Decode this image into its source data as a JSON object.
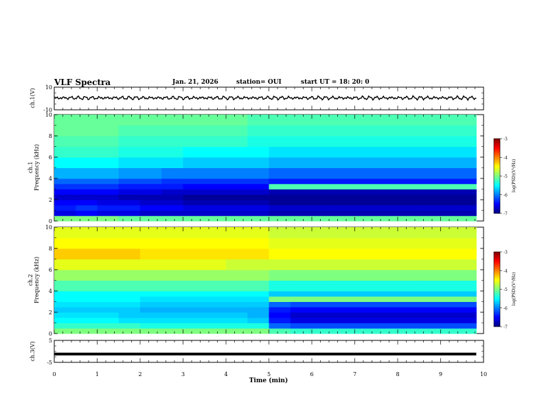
{
  "header": {
    "title": "VLF Spectra",
    "date": "Jan. 21, 2026",
    "station": "station= OUI",
    "start": "start  UT =   18: 20: 0"
  },
  "colors": {
    "colormap": [
      "#00007f",
      "#0000ff",
      "#007fff",
      "#00ffff",
      "#7fff7f",
      "#ffff00",
      "#ff7f00",
      "#ff0000",
      "#7f0000"
    ],
    "waveform": "#000000"
  },
  "chart_data": [
    {
      "id": "ch1-waveform",
      "type": "line",
      "ylabel": "ch.1(V)",
      "ylim": [
        -10,
        10
      ],
      "ytick_labels": [
        "10",
        "-10"
      ],
      "xlim": [
        0,
        10
      ],
      "data_extent_min": 9.83,
      "description_values": {
        "mean_v": 0.5,
        "amplitude_v": 2
      }
    },
    {
      "id": "ch1-spectrogram",
      "type": "heatmap",
      "ylabel": "ch.1\nFrequency (kHz)",
      "ylim": [
        0,
        10
      ],
      "ytick_labels": [
        "0",
        "2",
        "4",
        "6",
        "8",
        "10"
      ],
      "xlim": [
        0,
        10
      ],
      "x": [
        0.0,
        0.5,
        1.0,
        1.5,
        2.0,
        2.5,
        3.0,
        3.5,
        4.0,
        4.5,
        5.0,
        5.5,
        6.0,
        6.5,
        7.0,
        7.5,
        8.0,
        8.5,
        9.0,
        9.5,
        9.83
      ],
      "y": [
        0.5,
        1.0,
        1.5,
        2.0,
        2.5,
        3.0,
        3.5,
        4.0,
        5.0,
        6.0,
        7.0,
        8.0,
        9.0,
        10.0
      ],
      "z_log_psd": [
        [
          -5.0,
          -5.0,
          -5.0,
          -5.1,
          -5.1,
          -5.1,
          -5.1,
          -5.1,
          -5.1,
          -5.1,
          -5.1,
          -5.1,
          -5.1,
          -5.1,
          -5.1,
          -5.1,
          -5.1,
          -5.1,
          -5.1,
          -5.1,
          -5.1
        ],
        [
          -6.6,
          -6.5,
          -6.6,
          -6.6,
          -6.7,
          -6.7,
          -6.7,
          -6.7,
          -6.7,
          -6.7,
          -6.8,
          -6.8,
          -6.8,
          -6.8,
          -6.8,
          -6.8,
          -6.8,
          -6.8,
          -6.8,
          -6.8,
          -6.8
        ],
        [
          -6.4,
          -6.3,
          -6.4,
          -6.4,
          -6.5,
          -6.5,
          -6.6,
          -6.6,
          -6.6,
          -6.6,
          -6.7,
          -6.7,
          -6.7,
          -6.7,
          -6.7,
          -6.7,
          -6.7,
          -6.7,
          -6.7,
          -6.7,
          -6.7
        ],
        [
          -6.5,
          -6.5,
          -6.6,
          -6.6,
          -6.7,
          -6.7,
          -6.8,
          -6.8,
          -6.8,
          -6.8,
          -6.9,
          -6.9,
          -6.9,
          -6.9,
          -6.9,
          -6.9,
          -6.9,
          -6.9,
          -6.9,
          -6.9,
          -6.9
        ],
        [
          -6.7,
          -6.7,
          -6.7,
          -6.8,
          -6.8,
          -6.8,
          -6.9,
          -6.9,
          -6.9,
          -6.9,
          -6.9,
          -6.9,
          -6.9,
          -6.9,
          -6.9,
          -6.9,
          -6.9,
          -6.9,
          -6.9,
          -6.9,
          -6.9
        ],
        [
          -6.5,
          -6.5,
          -6.5,
          -6.6,
          -6.6,
          -6.7,
          -6.7,
          -6.7,
          -6.7,
          -6.7,
          -6.8,
          -6.8,
          -6.8,
          -6.8,
          -6.8,
          -6.8,
          -6.8,
          -6.8,
          -6.8,
          -6.8,
          -6.8
        ],
        [
          -6.3,
          -6.3,
          -6.3,
          -6.4,
          -6.4,
          -6.4,
          -6.5,
          -6.5,
          -6.5,
          -6.5,
          -5.2,
          -5.2,
          -5.2,
          -5.2,
          -5.2,
          -5.2,
          -5.2,
          -5.2,
          -5.2,
          -5.2,
          -5.2
        ],
        [
          -6.1,
          -6.1,
          -6.1,
          -6.2,
          -6.2,
          -6.3,
          -6.3,
          -6.3,
          -6.3,
          -6.3,
          -6.4,
          -6.4,
          -6.4,
          -6.4,
          -6.4,
          -6.4,
          -6.4,
          -6.4,
          -6.4,
          -6.4,
          -6.4
        ],
        [
          -5.8,
          -5.8,
          -5.8,
          -5.9,
          -5.9,
          -6.0,
          -6.0,
          -6.0,
          -6.0,
          -6.0,
          -6.1,
          -6.1,
          -6.1,
          -6.1,
          -6.1,
          -6.1,
          -6.1,
          -6.1,
          -6.1,
          -6.1,
          -6.1
        ],
        [
          -5.5,
          -5.5,
          -5.5,
          -5.6,
          -5.6,
          -5.6,
          -5.7,
          -5.7,
          -5.7,
          -5.7,
          -5.8,
          -5.8,
          -5.8,
          -5.8,
          -5.8,
          -5.8,
          -5.8,
          -5.8,
          -5.8,
          -5.8,
          -5.8
        ],
        [
          -5.3,
          -5.3,
          -5.3,
          -5.4,
          -5.4,
          -5.4,
          -5.5,
          -5.5,
          -5.5,
          -5.5,
          -5.6,
          -5.6,
          -5.6,
          -5.6,
          -5.6,
          -5.6,
          -5.6,
          -5.6,
          -5.6,
          -5.6,
          -5.6
        ],
        [
          -5.2,
          -5.2,
          -5.2,
          -5.3,
          -5.3,
          -5.3,
          -5.3,
          -5.3,
          -5.3,
          -5.4,
          -5.4,
          -5.4,
          -5.4,
          -5.4,
          -5.4,
          -5.4,
          -5.4,
          -5.4,
          -5.4,
          -5.4,
          -5.4
        ],
        [
          -5.1,
          -5.1,
          -5.1,
          -5.2,
          -5.2,
          -5.2,
          -5.2,
          -5.2,
          -5.2,
          -5.3,
          -5.3,
          -5.3,
          -5.3,
          -5.3,
          -5.3,
          -5.3,
          -5.3,
          -5.3,
          -5.3,
          -5.3,
          -5.3
        ],
        [
          -5.1,
          -5.1,
          -5.1,
          -5.1,
          -5.1,
          -5.1,
          -5.1,
          -5.1,
          -5.1,
          -5.2,
          -5.2,
          -5.2,
          -5.2,
          -5.2,
          -5.2,
          -5.2,
          -5.2,
          -5.2,
          -5.2,
          -5.2,
          -5.2
        ]
      ],
      "colorbar": {
        "label": "log(PSD)(V²/Hz)",
        "range": [
          -7,
          -3
        ],
        "tick_labels": [
          "-3",
          "-4",
          "-5",
          "-6",
          "-7"
        ]
      }
    },
    {
      "id": "ch2-spectrogram",
      "type": "heatmap",
      "ylabel": "ch.2\nFrequency (kHz)",
      "ylim": [
        0,
        10
      ],
      "ytick_labels": [
        "0",
        "2",
        "4",
        "6",
        "8",
        "10"
      ],
      "xlim": [
        0,
        10
      ],
      "x": [
        0.0,
        0.5,
        1.0,
        1.5,
        2.0,
        2.5,
        3.0,
        3.5,
        4.0,
        4.5,
        5.0,
        5.5,
        6.0,
        6.5,
        7.0,
        7.5,
        8.0,
        8.5,
        9.0,
        9.5,
        9.83
      ],
      "y": [
        0.5,
        1.0,
        1.5,
        2.0,
        2.5,
        3.0,
        3.5,
        4.0,
        5.0,
        6.0,
        7.0,
        8.0,
        9.0,
        10.0
      ],
      "z_log_psd": [
        [
          -5.0,
          -5.0,
          -5.0,
          -5.0,
          -5.0,
          -5.0,
          -5.0,
          -5.0,
          -5.0,
          -5.0,
          -5.2,
          -5.3,
          -5.3,
          -5.3,
          -5.3,
          -5.3,
          -5.3,
          -5.3,
          -5.3,
          -5.3,
          -5.3
        ],
        [
          -5.3,
          -5.3,
          -5.3,
          -5.3,
          -5.4,
          -5.4,
          -5.4,
          -5.4,
          -5.4,
          -5.4,
          -6.1,
          -6.2,
          -6.2,
          -6.2,
          -6.2,
          -6.2,
          -6.2,
          -6.2,
          -6.2,
          -6.2,
          -6.2
        ],
        [
          -5.5,
          -5.5,
          -5.5,
          -5.6,
          -5.6,
          -5.6,
          -5.6,
          -5.6,
          -5.6,
          -5.7,
          -6.4,
          -6.6,
          -6.6,
          -6.6,
          -6.6,
          -6.6,
          -6.6,
          -6.6,
          -6.6,
          -6.6,
          -6.6
        ],
        [
          -5.6,
          -5.6,
          -5.6,
          -5.7,
          -5.7,
          -5.7,
          -5.7,
          -5.7,
          -5.7,
          -5.8,
          -6.5,
          -6.7,
          -6.7,
          -6.7,
          -6.7,
          -6.7,
          -6.7,
          -6.7,
          -6.7,
          -6.7,
          -6.7
        ],
        [
          -5.7,
          -5.7,
          -5.7,
          -5.7,
          -5.8,
          -5.8,
          -5.8,
          -5.8,
          -5.8,
          -5.8,
          -6.4,
          -6.5,
          -6.5,
          -6.5,
          -6.5,
          -6.5,
          -6.5,
          -6.5,
          -6.5,
          -6.5,
          -6.5
        ],
        [
          -5.6,
          -5.6,
          -5.6,
          -5.6,
          -5.7,
          -5.7,
          -5.7,
          -5.7,
          -5.7,
          -5.7,
          -6.1,
          -6.2,
          -6.2,
          -6.2,
          -6.2,
          -6.2,
          -6.2,
          -6.2,
          -6.2,
          -6.2,
          -6.2
        ],
        [
          -5.5,
          -5.5,
          -5.5,
          -5.5,
          -5.6,
          -5.6,
          -5.6,
          -5.6,
          -5.6,
          -5.6,
          -5.0,
          -5.0,
          -5.0,
          -5.0,
          -5.0,
          -5.0,
          -5.0,
          -5.0,
          -5.0,
          -5.0,
          -5.0
        ],
        [
          -5.5,
          -5.5,
          -5.5,
          -5.5,
          -5.5,
          -5.5,
          -5.5,
          -5.5,
          -5.5,
          -5.5,
          -5.7,
          -5.7,
          -5.7,
          -5.7,
          -5.7,
          -5.7,
          -5.7,
          -5.7,
          -5.7,
          -5.7,
          -5.7
        ],
        [
          -5.2,
          -5.2,
          -5.2,
          -5.2,
          -5.2,
          -5.2,
          -5.2,
          -5.2,
          -5.2,
          -5.2,
          -5.4,
          -5.4,
          -5.4,
          -5.4,
          -5.4,
          -5.4,
          -5.4,
          -5.4,
          -5.4,
          -5.4,
          -5.4
        ],
        [
          -4.9,
          -4.9,
          -4.9,
          -4.9,
          -4.9,
          -4.9,
          -4.9,
          -4.9,
          -4.9,
          -4.9,
          -5.0,
          -5.0,
          -5.0,
          -5.0,
          -5.0,
          -5.0,
          -5.0,
          -5.0,
          -5.0,
          -5.0,
          -5.0
        ],
        [
          -4.6,
          -4.6,
          -4.6,
          -4.6,
          -4.6,
          -4.6,
          -4.6,
          -4.6,
          -4.7,
          -4.7,
          -4.7,
          -4.7,
          -4.7,
          -4.7,
          -4.7,
          -4.7,
          -4.7,
          -4.7,
          -4.7,
          -4.7,
          -4.7
        ],
        [
          -4.3,
          -4.3,
          -4.3,
          -4.3,
          -4.4,
          -4.4,
          -4.4,
          -4.4,
          -4.4,
          -4.4,
          -4.5,
          -4.5,
          -4.5,
          -4.5,
          -4.5,
          -4.5,
          -4.5,
          -4.5,
          -4.5,
          -4.5,
          -4.5
        ],
        [
          -4.5,
          -4.5,
          -4.5,
          -4.5,
          -4.5,
          -4.5,
          -4.5,
          -4.5,
          -4.5,
          -4.5,
          -4.6,
          -4.6,
          -4.6,
          -4.6,
          -4.6,
          -4.6,
          -4.6,
          -4.6,
          -4.6,
          -4.6,
          -4.6
        ],
        [
          -4.6,
          -4.6,
          -4.6,
          -4.6,
          -4.6,
          -4.6,
          -4.6,
          -4.6,
          -4.6,
          -4.6,
          -4.7,
          -4.7,
          -4.7,
          -4.7,
          -4.7,
          -4.7,
          -4.7,
          -4.7,
          -4.7,
          -4.7,
          -4.7
        ]
      ],
      "colorbar": {
        "label": "log(PSD)(V²/Hz)",
        "range": [
          -7,
          -3
        ],
        "tick_labels": [
          "-3",
          "-4",
          "-5",
          "-6",
          "-7"
        ]
      }
    },
    {
      "id": "ch3-waveform",
      "type": "line",
      "ylabel": "ch.3(V)",
      "ylim": [
        -5,
        5
      ],
      "ytick_labels": [
        "5",
        "-5"
      ],
      "xlim": [
        0,
        10
      ],
      "x": [
        0,
        9.83
      ],
      "y": [
        -1.2,
        -1.2
      ]
    }
  ],
  "xaxis": {
    "label": "Time (min)",
    "ticks": [
      0,
      1,
      2,
      3,
      4,
      5,
      6,
      7,
      8,
      9,
      10
    ],
    "tick_labels": [
      "0",
      "1",
      "2",
      "3",
      "4",
      "5",
      "6",
      "7",
      "8",
      "9",
      "10"
    ],
    "range": [
      0,
      10
    ]
  }
}
